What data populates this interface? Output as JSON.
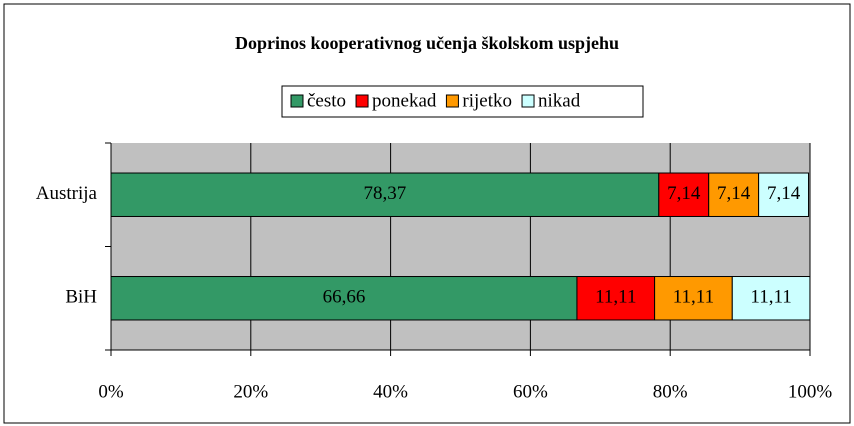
{
  "chart_data": {
    "type": "bar",
    "orientation": "horizontal",
    "stacked": true,
    "title": "Doprinos kooperativnog učenja školskom uspjehu",
    "categories": [
      "Austrija",
      "BiH"
    ],
    "series": [
      {
        "name": "često",
        "color": "#339966",
        "values": [
          78.37,
          66.66
        ],
        "value_labels": [
          "78,37",
          "66,66"
        ]
      },
      {
        "name": "ponekad",
        "color": "#ff0000",
        "values": [
          7.14,
          11.11
        ],
        "value_labels": [
          "7,14",
          "11,11"
        ]
      },
      {
        "name": "rijetko",
        "color": "#ff9900",
        "values": [
          7.14,
          11.11
        ],
        "value_labels": [
          "7,14",
          "11,11"
        ]
      },
      {
        "name": "nikad",
        "color": "#ccffff",
        "values": [
          7.14,
          11.11
        ],
        "value_labels": [
          "7,14",
          "11,11"
        ]
      }
    ],
    "xlim": [
      0,
      100
    ],
    "xticks": [
      {
        "value": 0,
        "label": "0%"
      },
      {
        "value": 20,
        "label": "20%"
      },
      {
        "value": 40,
        "label": "40%"
      },
      {
        "value": 60,
        "label": "60%"
      },
      {
        "value": 80,
        "label": "80%"
      },
      {
        "value": 100,
        "label": "100%"
      }
    ],
    "grid": true,
    "legend": "top"
  }
}
